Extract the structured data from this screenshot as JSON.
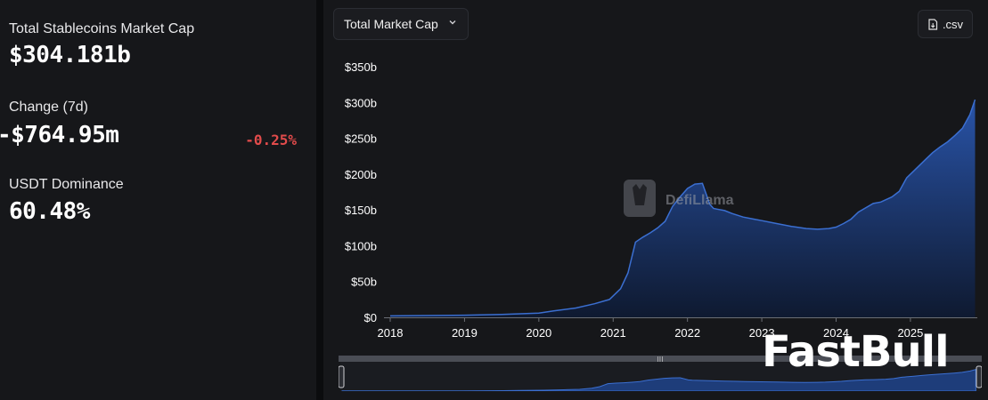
{
  "stats": {
    "market_cap_label": "Total Stablecoins Market Cap",
    "market_cap_value": "$304.181b",
    "change_label": "Change (7d)",
    "change_value": "-$764.95m",
    "change_pct": "-0.25%",
    "dominance_label": "USDT Dominance",
    "dominance_value": "60.48%"
  },
  "toolbar": {
    "dropdown_label": "Total Market Cap",
    "csv_label": ".csv"
  },
  "watermark": {
    "chart_logo_text": "DefiLlama",
    "overlay_logo_text": "FastBull"
  },
  "colors": {
    "line": "#3b6fd1",
    "area_top": "#2a57b0",
    "area_bottom": "#0e1a33",
    "negative": "#e14b4b",
    "grid": "#2a2c31",
    "axis_text": "#ffffff"
  },
  "chart_data": {
    "type": "area",
    "title": "",
    "xlabel": "",
    "ylabel": "",
    "x_ticks": [
      "2018",
      "2019",
      "2020",
      "2021",
      "2022",
      "2023",
      "2024",
      "2025"
    ],
    "y_ticks": [
      "$0",
      "$50b",
      "$100b",
      "$150b",
      "$200b",
      "$250b",
      "$300b",
      "$350b"
    ],
    "ylim": [
      0,
      350
    ],
    "xlim": [
      2018.0,
      2025.9
    ],
    "grid": "off",
    "series": [
      {
        "x": [
          2018.0,
          2018.5,
          2019.0,
          2019.5,
          2020.0,
          2020.2,
          2020.5,
          2020.75,
          2020.95,
          2021.1,
          2021.2,
          2021.3,
          2021.4,
          2021.5,
          2021.6,
          2021.7,
          2021.8,
          2021.9,
          2022.0,
          2022.1,
          2022.2,
          2022.3,
          2022.35,
          2022.4,
          2022.5,
          2022.6,
          2022.75,
          2022.9,
          2023.0,
          2023.2,
          2023.4,
          2023.6,
          2023.75,
          2023.9,
          2024.0,
          2024.1,
          2024.2,
          2024.3,
          2024.5,
          2024.6,
          2024.75,
          2024.85,
          2024.95,
          2025.1,
          2025.2,
          2025.3,
          2025.4,
          2025.5,
          2025.6,
          2025.7,
          2025.8,
          2025.87
        ],
        "values": [
          2,
          2.5,
          3,
          4,
          6,
          9,
          13,
          19,
          25,
          40,
          62,
          105,
          112,
          118,
          125,
          134,
          155,
          168,
          180,
          186,
          187,
          158,
          152,
          151,
          149,
          145,
          140,
          137,
          135,
          131,
          127,
          124,
          123,
          124,
          126,
          131,
          137,
          147,
          159,
          161,
          168,
          176,
          195,
          210,
          220,
          230,
          238,
          245,
          254,
          264,
          283,
          304
        ]
      }
    ]
  }
}
